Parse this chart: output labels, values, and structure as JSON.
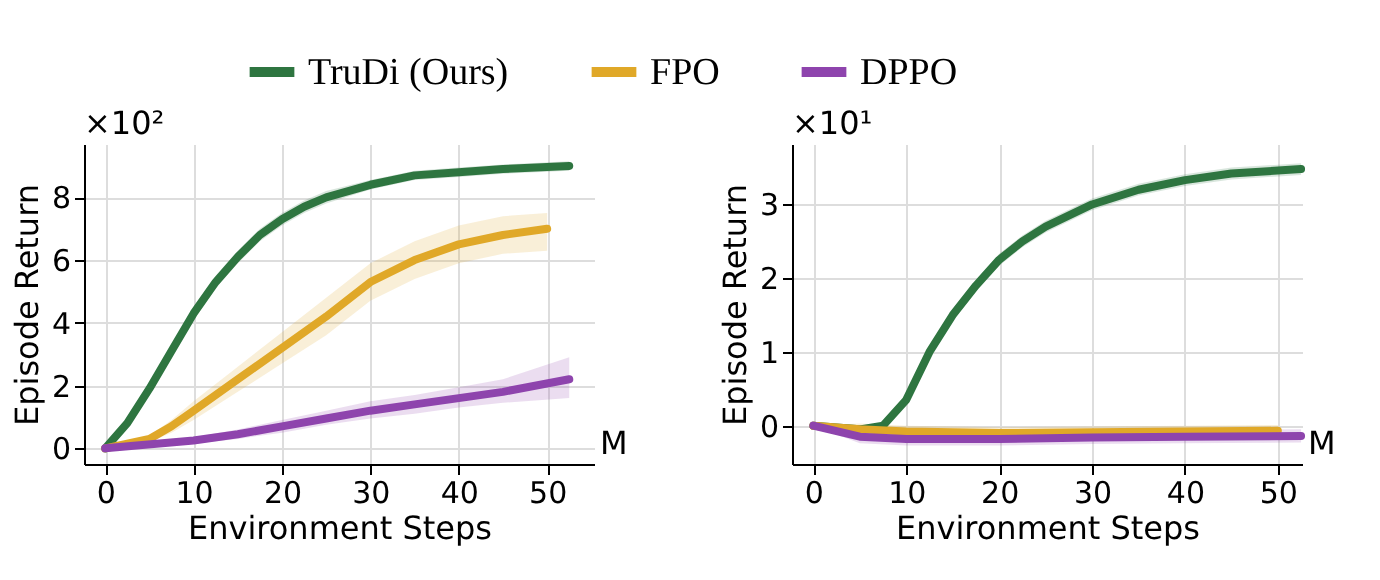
{
  "chart_data": [
    {
      "type": "line",
      "xlabel": "Environment Steps",
      "ylabel": "Episode Return",
      "xlim": [
        -2.4,
        55.3
      ],
      "ylim": [
        -0.5,
        9.7
      ],
      "xticks": [
        0,
        10,
        20,
        30,
        40,
        50
      ],
      "yticks": [
        0,
        2,
        4,
        6,
        8
      ],
      "grid": true,
      "legend": "top",
      "annotations": [
        "×10²",
        "M"
      ],
      "series": [
        {
          "name": "TruDi (Ours)",
          "color": "#2e7540",
          "x": [
            0,
            2.5,
            5,
            7.5,
            10,
            12.5,
            15,
            17.5,
            20,
            22.5,
            25,
            30,
            35,
            40,
            45,
            52.5
          ],
          "values": [
            0,
            0.8,
            1.9,
            3.1,
            4.3,
            5.3,
            6.1,
            6.8,
            7.3,
            7.7,
            8.0,
            8.4,
            8.7,
            8.8,
            8.9,
            9.0
          ],
          "lower": [
            0,
            0.65,
            1.7,
            2.9,
            4.1,
            5.1,
            5.9,
            6.6,
            7.1,
            7.5,
            7.8,
            8.25,
            8.55,
            8.65,
            8.75,
            8.85
          ],
          "upper": [
            0,
            0.95,
            2.1,
            3.3,
            4.5,
            5.5,
            6.3,
            7.0,
            7.5,
            7.9,
            8.2,
            8.55,
            8.85,
            8.95,
            9.05,
            9.15
          ]
        },
        {
          "name": "FPO",
          "color": "#e0a828",
          "x": [
            0,
            5,
            7.5,
            10,
            15,
            20,
            25,
            30,
            35,
            40,
            45,
            50
          ],
          "values": [
            0,
            0.3,
            0.7,
            1.2,
            2.2,
            3.2,
            4.2,
            5.3,
            6.0,
            6.5,
            6.8,
            7.0
          ],
          "lower": [
            0,
            0.2,
            0.5,
            0.9,
            1.8,
            2.7,
            3.6,
            4.7,
            5.4,
            5.9,
            6.2,
            6.3
          ],
          "upper": [
            0,
            0.4,
            0.9,
            1.5,
            2.6,
            3.7,
            4.8,
            5.9,
            6.6,
            7.1,
            7.4,
            7.5
          ]
        },
        {
          "name": "DPPO",
          "color": "#8e44ad",
          "x": [
            0,
            10,
            15,
            20,
            25,
            30,
            35,
            40,
            45,
            52.5
          ],
          "values": [
            0,
            0.25,
            0.45,
            0.7,
            0.95,
            1.2,
            1.4,
            1.6,
            1.8,
            2.2
          ],
          "lower": [
            0,
            0.15,
            0.3,
            0.5,
            0.75,
            0.95,
            1.1,
            1.3,
            1.45,
            1.6
          ],
          "upper": [
            0,
            0.35,
            0.6,
            0.9,
            1.2,
            1.5,
            1.7,
            1.95,
            2.2,
            2.9
          ]
        }
      ]
    },
    {
      "type": "line",
      "xlabel": "Environment Steps",
      "ylabel": "Episode Return",
      "xlim": [
        -2.3,
        52.6
      ],
      "ylim": [
        -0.52,
        3.82
      ],
      "xticks": [
        0,
        10,
        20,
        30,
        40,
        50
      ],
      "yticks": [
        0,
        1,
        2,
        3
      ],
      "grid": true,
      "legend": "top",
      "annotations": [
        "×10¹",
        "M"
      ],
      "series": [
        {
          "name": "TruDi (Ours)",
          "color": "#2e7540",
          "x": [
            0,
            5,
            7.5,
            10,
            12.5,
            15,
            17.5,
            20,
            22.5,
            25,
            30,
            35,
            40,
            45,
            52.5
          ],
          "values": [
            0,
            -0.05,
            0.0,
            0.35,
            1.0,
            1.5,
            1.9,
            2.25,
            2.5,
            2.7,
            3.0,
            3.2,
            3.33,
            3.42,
            3.48
          ],
          "lower": [
            0,
            -0.08,
            -0.04,
            0.3,
            0.93,
            1.42,
            1.82,
            2.17,
            2.42,
            2.62,
            2.92,
            3.12,
            3.25,
            3.34,
            3.4
          ],
          "upper": [
            0,
            -0.02,
            0.04,
            0.4,
            1.07,
            1.58,
            1.98,
            2.33,
            2.58,
            2.78,
            3.08,
            3.28,
            3.41,
            3.5,
            3.56
          ]
        },
        {
          "name": "FPO",
          "color": "#e0a828",
          "x": [
            0,
            5,
            10,
            20,
            30,
            40,
            50
          ],
          "values": [
            0,
            -0.05,
            -0.08,
            -0.1,
            -0.09,
            -0.08,
            -0.07
          ],
          "lower": [
            0,
            -0.13,
            -0.16,
            -0.18,
            -0.17,
            -0.16,
            -0.15
          ],
          "upper": [
            0,
            0.03,
            0.0,
            -0.02,
            -0.01,
            0.0,
            0.01
          ]
        },
        {
          "name": "DPPO",
          "color": "#8e44ad",
          "x": [
            0,
            5,
            10,
            20,
            30,
            40,
            52.5
          ],
          "values": [
            0,
            -0.15,
            -0.18,
            -0.18,
            -0.16,
            -0.15,
            -0.14
          ],
          "lower": [
            0,
            -0.24,
            -0.27,
            -0.27,
            -0.25,
            -0.24,
            -0.23
          ],
          "upper": [
            0,
            -0.06,
            -0.09,
            -0.09,
            -0.07,
            -0.06,
            -0.05
          ]
        }
      ]
    }
  ]
}
